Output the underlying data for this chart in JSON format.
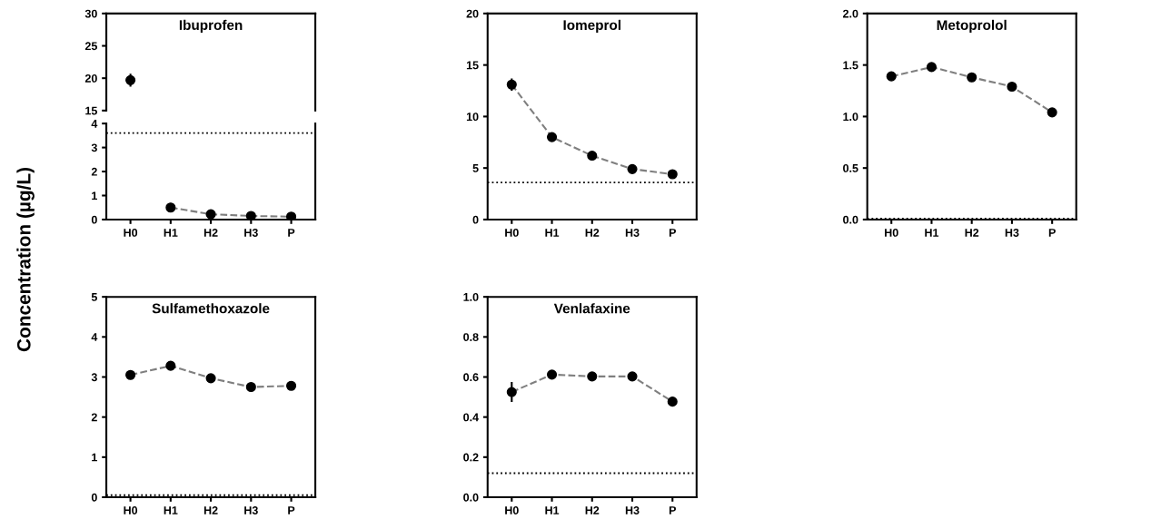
{
  "chart_data": [
    {
      "type": "line",
      "title": "Ibuprofen",
      "ylabel": "Concentration (µg/L)",
      "categories": [
        null,
        null,
        null,
        null,
        null
      ],
      "ylim": [
        15,
        30
      ],
      "yticks": [
        15,
        20,
        25,
        30
      ],
      "tick_labels": "y",
      "marker": "circle",
      "line_style": "dashed",
      "grid": false,
      "legend": false,
      "series": [
        {
          "color": "#000000",
          "values": [
            19.7,
            null,
            null,
            null,
            null
          ],
          "errors": [
            1.0,
            null,
            null,
            null,
            null
          ]
        }
      ]
    },
    {
      "type": "line",
      "categories": [
        "H0",
        "H1",
        "H2",
        "H3",
        "P"
      ],
      "ylim": [
        0,
        4
      ],
      "yticks": [
        0,
        1,
        2,
        3,
        4
      ],
      "marker": "circle",
      "line_style": "dashed",
      "grid": false,
      "legend": false,
      "series": [
        {
          "color": "#000000",
          "values": [
            null,
            0.5,
            0.22,
            0.15,
            0.12
          ]
        }
      ],
      "ref_lines": [
        {
          "axis": "y",
          "value": 3.6,
          "line_style": "dotted",
          "color": "#000000"
        }
      ]
    },
    {
      "type": "line",
      "title": "Iomeprol",
      "categories": [
        "H0",
        "H1",
        "H2",
        "H3",
        "P"
      ],
      "ylim": [
        0,
        20
      ],
      "yticks": [
        0,
        5,
        10,
        15,
        20
      ],
      "marker": "circle",
      "line_style": "dashed",
      "grid": false,
      "legend": false,
      "series": [
        {
          "color": "#000000",
          "values": [
            13.1,
            8.0,
            6.2,
            4.9,
            4.4
          ],
          "errors": [
            0.6,
            null,
            null,
            null,
            null
          ]
        }
      ],
      "ref_lines": [
        {
          "axis": "y",
          "value": 3.6,
          "line_style": "dotted",
          "color": "#000000"
        }
      ]
    },
    {
      "type": "line",
      "title": "Metoprolol",
      "categories": [
        "H0",
        "H1",
        "H2",
        "H3",
        "P"
      ],
      "ylim": [
        0,
        2
      ],
      "yticks": [
        {
          "value": 0,
          "label": "0.0"
        },
        0.5,
        {
          "value": 1,
          "label": "1.0"
        },
        1.5,
        {
          "value": 2,
          "label": "2.0"
        }
      ],
      "marker": "circle",
      "line_style": "dashed",
      "grid": false,
      "legend": false,
      "series": [
        {
          "color": "#000000",
          "values": [
            1.39,
            1.48,
            1.38,
            1.29,
            1.04
          ]
        }
      ],
      "ref_lines": [
        {
          "axis": "y",
          "value": 0.01,
          "line_style": "dotted",
          "color": "#000000"
        }
      ]
    },
    {
      "type": "line",
      "title": "Sulfamethoxazole",
      "categories": [
        "H0",
        "H1",
        "H2",
        "H3",
        "P"
      ],
      "ylim": [
        0,
        5
      ],
      "yticks": [
        0,
        1,
        2,
        3,
        4,
        5
      ],
      "marker": "circle",
      "line_style": "dashed",
      "grid": false,
      "legend": false,
      "series": [
        {
          "color": "#000000",
          "values": [
            3.05,
            3.28,
            2.97,
            2.75,
            2.78
          ]
        }
      ],
      "ref_lines": [
        {
          "axis": "y",
          "value": 0.05,
          "line_style": "dotted",
          "color": "#000000"
        }
      ]
    },
    {
      "type": "line",
      "title": "Venlafaxine",
      "categories": [
        "H0",
        "H1",
        "H2",
        "H3",
        "P"
      ],
      "ylim": [
        0,
        1
      ],
      "yticks": [
        {
          "value": 0,
          "label": "0.0"
        },
        0.2,
        0.4,
        0.6,
        0.8,
        {
          "value": 1,
          "label": "1.0"
        }
      ],
      "marker": "circle",
      "line_style": "dashed",
      "grid": false,
      "legend": false,
      "series": [
        {
          "color": "#000000",
          "values": [
            0.525,
            0.612,
            0.603,
            0.603,
            0.477
          ],
          "errors": [
            0.05,
            null,
            null,
            null,
            null
          ]
        }
      ],
      "ref_lines": [
        {
          "axis": "y",
          "value": 0.12,
          "line_style": "dotted",
          "color": "#000000"
        }
      ]
    }
  ]
}
